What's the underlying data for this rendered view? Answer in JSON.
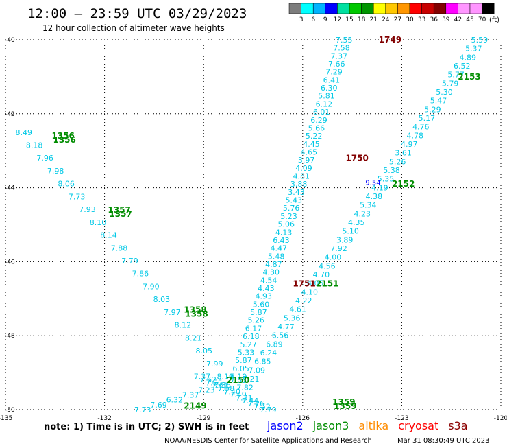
{
  "header": {
    "title": "12:00 – 23:59 UTC 03/29/2023",
    "subtitle": "12 hour collection of altimeter wave heights"
  },
  "colorbar": {
    "unit": "(ft)",
    "levels": [
      "3",
      "6",
      "9",
      "12",
      "15",
      "18",
      "21",
      "24",
      "27",
      "30",
      "33",
      "36",
      "39",
      "42",
      "45",
      "70"
    ],
    "colors": [
      "#7d7d7d",
      "#00ffff",
      "#00b4ff",
      "#0000ff",
      "#00e0a0",
      "#00c800",
      "#009600",
      "#ffff00",
      "#ffc800",
      "#ff9600",
      "#ff0000",
      "#c80000",
      "#820000",
      "#ff00ff",
      "#ff96ff",
      "#ff96ff",
      "#000000"
    ]
  },
  "footer": {
    "note": "note: 1) Time is in UTC; 2) SWH is in feet",
    "credit": "NOAA/NESDIS Center for Satellite Applications and Research",
    "timestamp": "Mar 31 08:30:49 UTC 2023",
    "legend": [
      {
        "name": "jason2",
        "color": "#0000ff"
      },
      {
        "name": "jason3",
        "color": "#008c00"
      },
      {
        "name": "altika",
        "color": "#ff8c00"
      },
      {
        "name": "cryosat",
        "color": "#ff0000"
      },
      {
        "name": "s3a",
        "color": "#8b0000"
      }
    ]
  },
  "chart_data": {
    "type": "scatter",
    "xlim": [
      -135,
      -120
    ],
    "ylim": [
      -50,
      -40
    ],
    "xticks": [
      "-135",
      "-132",
      "-129",
      "-126",
      "-123",
      "-120"
    ],
    "yticks": [
      "-40",
      "-42",
      "-44",
      "-46",
      "-48",
      "-50"
    ],
    "grid": true,
    "colors": {
      "swh": "#00c8e6",
      "time_jason3": "#008c00",
      "time_cryosat": "#820000",
      "swh_highlight": "#0000ff"
    },
    "tracks": [
      {
        "name": "track-1356",
        "from": [
          -134.7,
          -42.5
        ],
        "to": [
          -128.6,
          -49.1
        ],
        "labels": [
          "8.49",
          "8.18",
          "7.96",
          "7.98",
          "8.06",
          "7.73",
          "7.93",
          "8.10",
          "8.14",
          "7.88",
          "7.79",
          "7.86",
          "7.90",
          "8.03",
          "7.97",
          "8.12",
          "8.21",
          "8.05",
          "7.99",
          "8.10"
        ]
      },
      {
        "name": "track-1359",
        "from": [
          -129.3,
          -49.1
        ],
        "to": [
          -127.3,
          -50.0
        ],
        "labels": [
          "7.37",
          "7.62",
          "7.55",
          "7.61",
          "7.58",
          "7.40",
          "7.49",
          "7.31",
          "7.44",
          "7.26",
          "7.52",
          "7.79"
        ]
      },
      {
        "name": "track-1749",
        "from": [
          -128.2,
          -49.1
        ],
        "to": [
          -125.0,
          -40.0
        ],
        "labels": [
          "6.10",
          "6.05",
          "5.87",
          "5.33",
          "5.27",
          "6.18",
          "6.17",
          "5.26",
          "5.87",
          "5.60",
          "4.93",
          "4.43",
          "4.54",
          "4.30",
          "4.87",
          "5.48",
          "4.47",
          "6.43",
          "4.13",
          "5.06",
          "5.23",
          "5.76",
          "5.43",
          "3.43",
          "3.88",
          "4.81",
          "4.09",
          "3.97",
          "4.65",
          "4.45",
          "5.22",
          "5.66",
          "6.29",
          "6.01",
          "6.12",
          "5.81",
          "6.30",
          "6.41",
          "7.29",
          "7.66",
          "7.37",
          "7.58",
          "7.55"
        ]
      },
      {
        "name": "track-2150-south",
        "from": [
          -131.1,
          -50.0
        ],
        "to": [
          -128.2,
          -49.2
        ],
        "labels": [
          "7.73",
          "7.69",
          "6.32",
          "7.37",
          "7.23",
          "7.36",
          "7.53"
        ]
      },
      {
        "name": "track-2150-north",
        "from": [
          -128.0,
          -49.4
        ],
        "to": [
          -120.9,
          -40.0
        ],
        "labels": [
          "7.82",
          "7.21",
          "7.09",
          "6.85",
          "6.24",
          "6.89",
          "6.56",
          "4.77",
          "5.36",
          "4.61",
          "4.22",
          "4.10",
          "4.05",
          "4.70",
          "4.56",
          "4.00",
          "7.92",
          "3.89",
          "5.10",
          "4.35",
          "4.23",
          "5.34",
          "4.38",
          "4.19",
          "5.35",
          "5.38",
          "5.26",
          "3.61",
          "4.97",
          "4.78",
          "4.76",
          "5.17",
          "5.29",
          "5.47",
          "5.30",
          "5.79",
          "5.77",
          "6.52",
          "4.89",
          "5.37",
          "5.59"
        ]
      }
    ],
    "time_labels": [
      {
        "text": "1356",
        "x": -133.6,
        "y": -42.6,
        "kind": "jason3",
        "dup": true
      },
      {
        "text": "1357",
        "x": -131.9,
        "y": -44.6,
        "kind": "jason3",
        "dup": true
      },
      {
        "text": "1358",
        "x": -129.6,
        "y": -47.3,
        "kind": "jason3",
        "dup": true
      },
      {
        "text": "1359",
        "x": -125.1,
        "y": -49.8,
        "kind": "jason3",
        "dup": true
      },
      {
        "text": "1749",
        "x": -123.7,
        "y": -40.0,
        "kind": "cryosat",
        "dup": false
      },
      {
        "text": "1750",
        "x": -124.7,
        "y": -43.2,
        "kind": "cryosat",
        "dup": false
      },
      {
        "text": "1751",
        "x": -126.3,
        "y": -46.6,
        "kind": "cryosat",
        "dup": false
      },
      {
        "text": "2149",
        "x": -129.6,
        "y": -49.9,
        "kind": "jason3",
        "dup": false
      },
      {
        "text": "2150",
        "x": -128.3,
        "y": -49.2,
        "kind": "jason3",
        "dup": false
      },
      {
        "text": "2151",
        "x": -125.6,
        "y": -46.6,
        "kind": "jason3",
        "dup": false
      },
      {
        "text": "2152",
        "x": -123.3,
        "y": -43.9,
        "kind": "jason3",
        "dup": false
      },
      {
        "text": "2153",
        "x": -121.3,
        "y": -41.0,
        "kind": "jason3",
        "dup": false
      }
    ],
    "highlight_labels": [
      {
        "text": "9.54",
        "x": -124.1,
        "y": -43.85
      }
    ]
  }
}
